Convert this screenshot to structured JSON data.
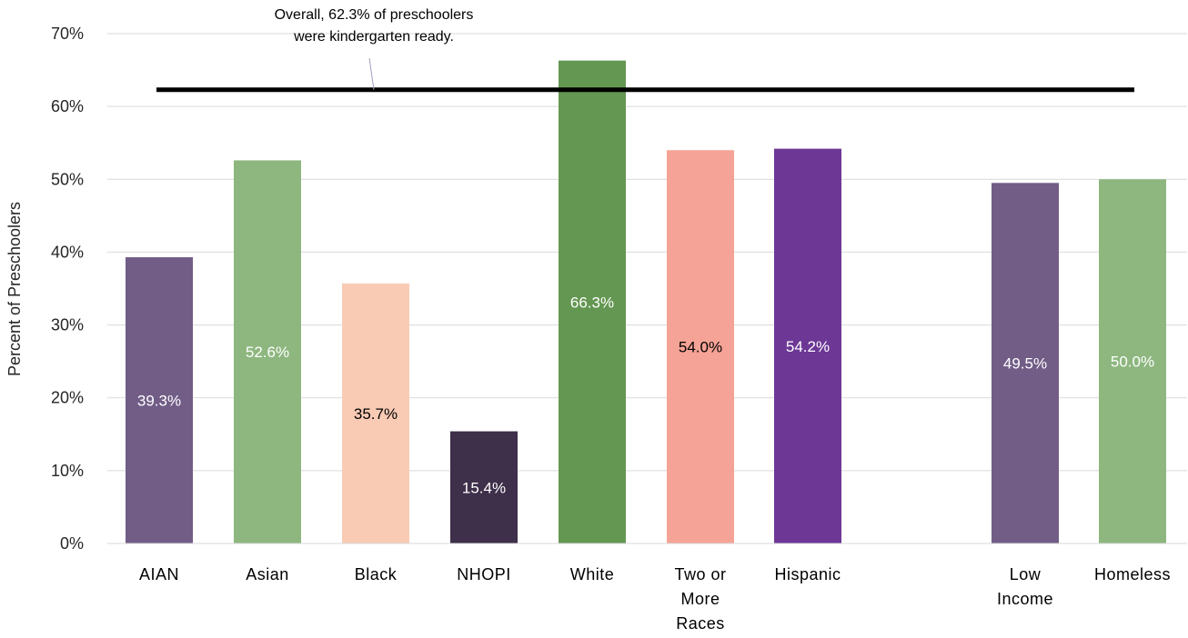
{
  "chart_data": {
    "type": "bar",
    "ylabel": "Percent of Preschoolers",
    "ylim": [
      0,
      70
    ],
    "yticks": [
      "0%",
      "10%",
      "20%",
      "30%",
      "40%",
      "50%",
      "60%",
      "70%"
    ],
    "grid": true,
    "categories": [
      "AIAN",
      "Asian",
      "Black",
      "NHOPI",
      "White",
      "Two or More Races",
      "Hispanic",
      "Low Income",
      "Homeless"
    ],
    "category_lines": [
      [
        "AIAN"
      ],
      [
        "Asian"
      ],
      [
        "Black"
      ],
      [
        "NHOPI"
      ],
      [
        "White"
      ],
      [
        "Two or",
        "More",
        "Races"
      ],
      [
        "Hispanic"
      ],
      [
        "Low",
        "Income"
      ],
      [
        "Homeless"
      ]
    ],
    "values": [
      39.3,
      52.6,
      35.7,
      15.4,
      66.3,
      54.0,
      54.2,
      49.5,
      50.0
    ],
    "labels": [
      "39.3%",
      "52.6%",
      "35.7%",
      "15.4%",
      "66.3%",
      "54.0%",
      "54.2%",
      "49.5%",
      "50.0%"
    ],
    "colors": [
      "#715d86",
      "#8db77f",
      "#f9cbb4",
      "#3e2f4a",
      "#649752",
      "#f5a396",
      "#6d3796",
      "#715d86",
      "#8db77f"
    ],
    "label_colors": [
      "#ffffff",
      "#ffffff",
      "#000000",
      "#ffffff",
      "#ffffff",
      "#000000",
      "#ffffff",
      "#ffffff",
      "#ffffff"
    ],
    "reference_line": {
      "value": 62.3,
      "color": "#000000"
    },
    "annotation": [
      "Overall, 62.3% of preschoolers",
      "were kindergarten ready."
    ]
  }
}
